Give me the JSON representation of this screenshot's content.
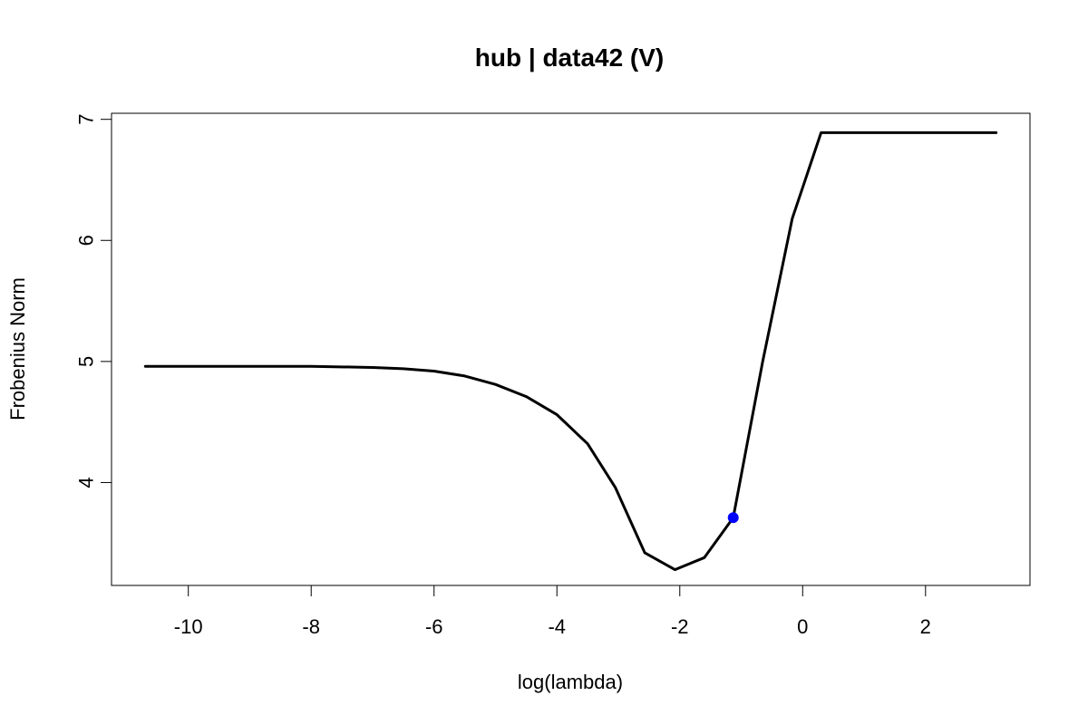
{
  "chart_data": {
    "type": "line",
    "title": "hub | data42 (V)",
    "xlabel": "log(lambda)",
    "ylabel": "Frobenius Norm",
    "xlim": [
      -11.25,
      3.7
    ],
    "ylim": [
      3.15,
      7.05
    ],
    "xticks": [
      -10,
      -8,
      -6,
      -4,
      -2,
      0,
      2
    ],
    "xtick_labels": [
      "-10",
      "-8",
      "-6",
      "-4",
      "-2",
      "0",
      "2"
    ],
    "yticks": [
      4,
      5,
      6,
      7
    ],
    "ytick_labels": [
      "4",
      "5",
      "6",
      "7"
    ],
    "grid": false,
    "series": [
      {
        "color": "#000000",
        "x": [
          -10.7,
          -9.0,
          -8.0,
          -7.0,
          -6.5,
          -6.0,
          -5.5,
          -5.0,
          -4.5,
          -4.0,
          -3.5,
          -3.05,
          -2.57,
          -2.08,
          -1.6,
          -1.13,
          -0.65,
          -0.17,
          0.3,
          3.15
        ],
        "y": [
          4.96,
          4.96,
          4.96,
          4.95,
          4.94,
          4.92,
          4.88,
          4.81,
          4.71,
          4.56,
          4.32,
          3.96,
          3.42,
          3.28,
          3.38,
          3.71,
          5.0,
          6.18,
          6.89,
          6.89
        ]
      }
    ],
    "highlight_point": {
      "x": -1.13,
      "y": 3.71,
      "color": "#0000ff"
    }
  }
}
